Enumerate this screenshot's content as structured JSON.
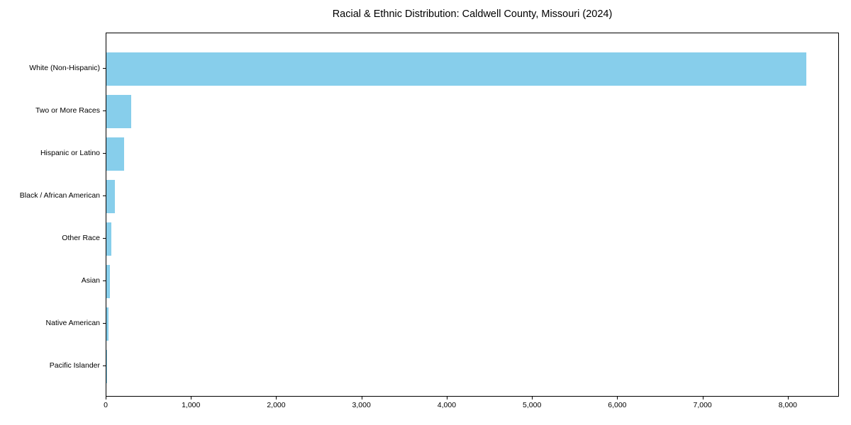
{
  "title": "Racial & Ethnic Distribution: Caldwell County, Missouri (2024)",
  "colors": {
    "bar_fill": "#87CEEB",
    "axis": "#000000",
    "background": "#ffffff",
    "text": "#000000"
  },
  "chart_data": {
    "type": "bar",
    "orientation": "horizontal",
    "title": "Racial & Ethnic Distribution: Caldwell County, Missouri (2024)",
    "categories": [
      "White (Non-Hispanic)",
      "Two or More Races",
      "Hispanic or Latino",
      "Black / African American",
      "Other Race",
      "Asian",
      "Native American",
      "Pacific Islander"
    ],
    "values": [
      8210,
      290,
      205,
      103,
      55,
      42,
      25,
      2
    ],
    "xlabel": "",
    "ylabel": "",
    "xlim": [
      0,
      8600
    ],
    "x_ticks": [
      0,
      1000,
      2000,
      3000,
      4000,
      5000,
      6000,
      7000,
      8000
    ],
    "x_tick_labels": [
      "0",
      "1,000",
      "2,000",
      "3,000",
      "4,000",
      "5,000",
      "6,000",
      "7,000",
      "8,000"
    ],
    "grid": false,
    "legend": null,
    "bar_color": "#87CEEB"
  }
}
